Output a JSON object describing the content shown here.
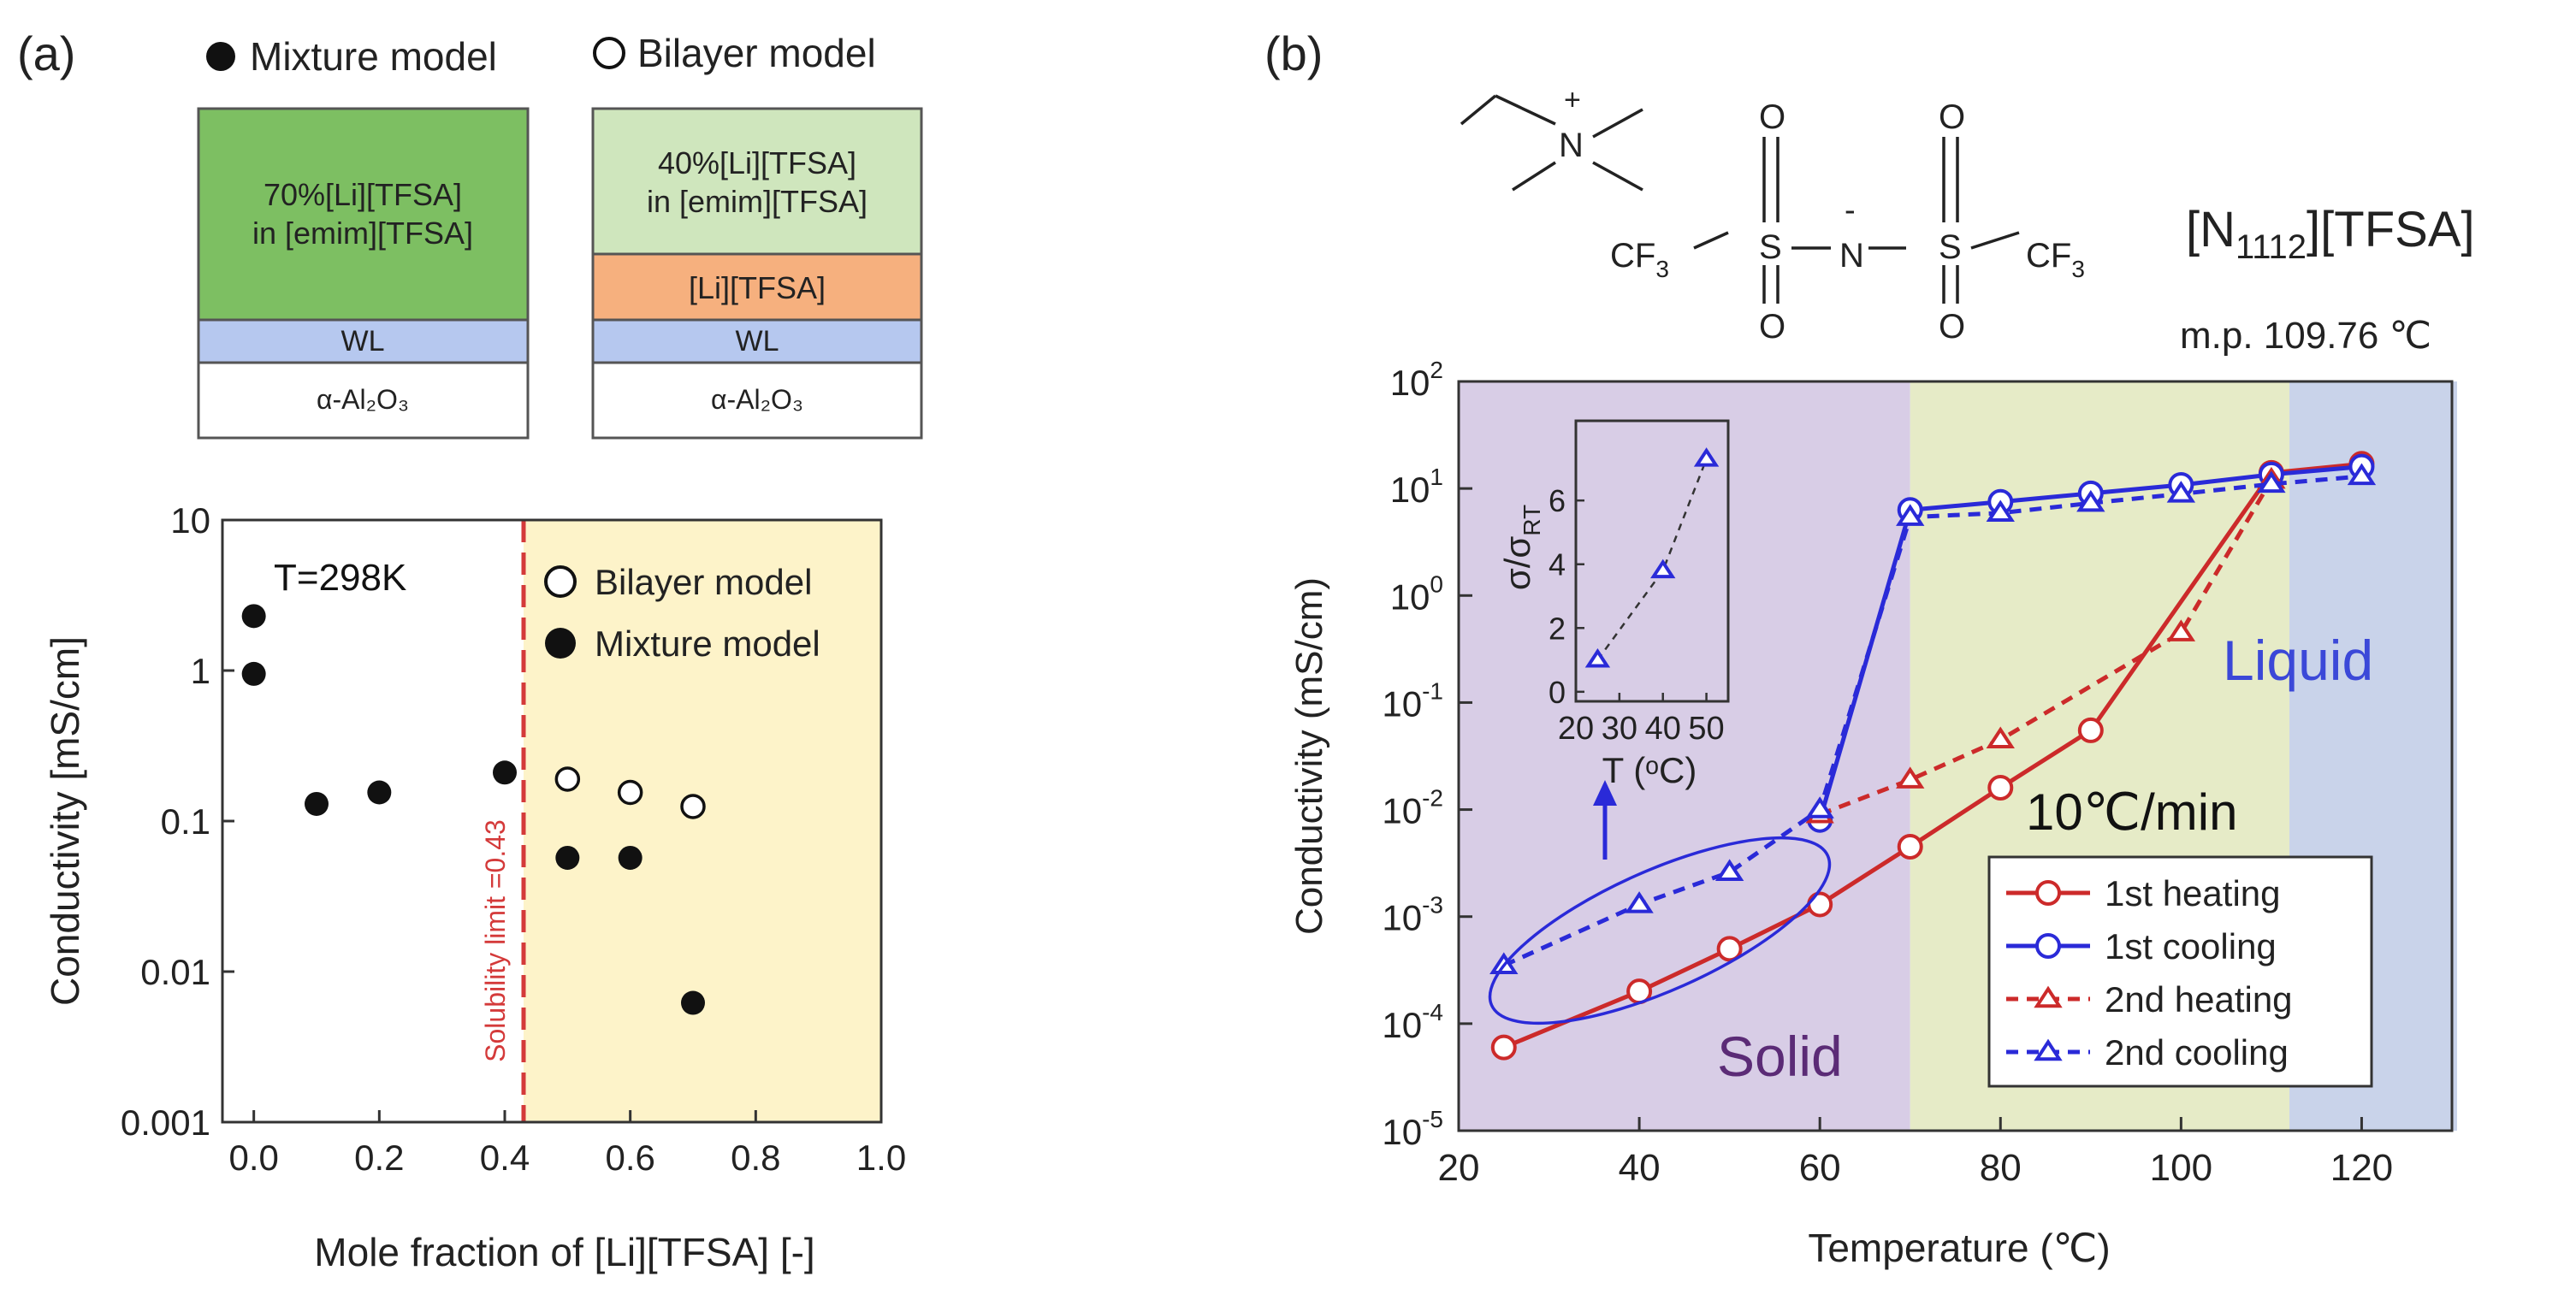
{
  "colors": {
    "layer_mix": "#7dbf62",
    "layer_bilayer": "#cfe6bd",
    "layer_li": "#f6b07e",
    "layer_wl": "#b6c8ef",
    "region_a": "#fdf3c9",
    "dash_a": "#d43a3a",
    "solid": "#d8cde6",
    "mid": "#e6ebc7",
    "liquid": "#c9d3ea",
    "red": "#cc2a2a",
    "blue": "#2a2ad8",
    "solid_text": "#5b2b76",
    "liquid_text": "#3b48d8"
  },
  "panel_a": {
    "label": "(a)",
    "legend_top": {
      "mixture": "Mixture model",
      "bilayer": "Bilayer model"
    },
    "mixture_box": {
      "top_line1": "70%[Li][TFSA]",
      "top_line2": "in [emim][TFSA]",
      "wl": "WL",
      "substrate": "α-Al₂O₃"
    },
    "bilayer_box": {
      "top_line1": "40%[Li][TFSA]",
      "top_line2": "in [emim][TFSA]",
      "middle": "[Li][TFSA]",
      "wl": "WL",
      "substrate": "α-Al₂O₃"
    }
  },
  "panel_b": {
    "label": "(b)",
    "compound": "[N1112][TFSA]",
    "compound_sub": "1112",
    "mp": "m.p. 109.76 ℃",
    "structure": {
      "o1": "O",
      "o2": "O",
      "o3": "O",
      "o4": "O",
      "s1": "S",
      "s2": "S",
      "n_anion": "N",
      "n_cation": "N",
      "plus": "+",
      "minus": "-",
      "cf3_left": "CF",
      "cf3_right": "CF",
      "three": "3"
    },
    "inset_arrow": "↑"
  },
  "chart_data": [
    {
      "type": "scatter",
      "title": "",
      "annotation": "T=298K",
      "xlabel": "Mole fraction of [Li][TFSA] [-]",
      "ylabel": "Conductivity [mS/cm]",
      "xlim": [
        -0.05,
        1.0
      ],
      "ylim": [
        0.001,
        10
      ],
      "yscale": "log",
      "x_ticks": [
        "0.0",
        "0.2",
        "0.4",
        "0.6",
        "0.8",
        "1.0"
      ],
      "x_tick_values": [
        0.0,
        0.2,
        0.4,
        0.6,
        0.8,
        1.0
      ],
      "y_ticks": [
        "0.001",
        "0.01",
        "0.1",
        "1",
        "10"
      ],
      "y_tick_values": [
        0.001,
        0.01,
        0.1,
        1,
        10
      ],
      "vline": {
        "x": 0.43,
        "label": "Solubility limit =0.43"
      },
      "shaded_region": {
        "x_from": 0.43,
        "x_to": 1.0
      },
      "legend": [
        "Bilayer model",
        "Mixture model"
      ],
      "series": [
        {
          "name": "Mixture model",
          "marker": "filled-circle",
          "x": [
            0.0,
            0.0,
            0.1,
            0.2,
            0.4,
            0.5,
            0.6,
            0.7
          ],
          "y": [
            2.3,
            0.95,
            0.13,
            0.155,
            0.21,
            0.057,
            0.057,
            0.0062
          ]
        },
        {
          "name": "Bilayer model",
          "marker": "open-circle",
          "x": [
            0.5,
            0.6,
            0.7
          ],
          "y": [
            0.19,
            0.155,
            0.125
          ]
        }
      ]
    },
    {
      "type": "line",
      "title": "",
      "xlabel": "Temperature (℃)",
      "ylabel": "Conductivity (mS/cm)",
      "xlim": [
        20,
        130
      ],
      "ylim": [
        1e-05,
        100
      ],
      "yscale": "log",
      "x_ticks": [
        "20",
        "40",
        "60",
        "80",
        "100",
        "120"
      ],
      "x_tick_values": [
        20,
        40,
        60,
        80,
        100,
        120
      ],
      "y_tick_exponents": [
        "-5",
        "-4",
        "-3",
        "-2",
        "-1",
        "0",
        "1",
        "2"
      ],
      "y_tick_base": "10",
      "regions": [
        {
          "label": "Solid",
          "x_from": 20,
          "x_to": 70
        },
        {
          "label": "",
          "x_from": 70,
          "x_to": 112
        },
        {
          "label": "Liquid",
          "x_from": 112,
          "x_to": 131
        }
      ],
      "annotation": "10℃/min",
      "series": [
        {
          "name": "1st heating",
          "marker": "open-circle",
          "line": "solid",
          "color": "red",
          "x": [
            25,
            40,
            50,
            60,
            70,
            80,
            90,
            110,
            120
          ],
          "y": [
            6e-05,
            0.0002,
            0.0005,
            0.0013,
            0.0045,
            0.016,
            0.055,
            14,
            17
          ]
        },
        {
          "name": "1st cooling",
          "marker": "open-circle",
          "line": "solid",
          "color": "blue",
          "x": [
            60,
            70,
            80,
            90,
            100,
            110,
            120
          ],
          "y": [
            0.008,
            6.3,
            7.5,
            9.0,
            10.8,
            13.5,
            16
          ]
        },
        {
          "name": "2nd heating",
          "marker": "open-triangle",
          "line": "dashed",
          "color": "red",
          "x": [
            60,
            70,
            80,
            100,
            110
          ],
          "y": [
            0.009,
            0.019,
            0.045,
            0.45,
            12
          ]
        },
        {
          "name": "2nd cooling",
          "marker": "open-triangle",
          "line": "dashed",
          "color": "blue",
          "x": [
            25,
            40,
            50,
            60,
            70,
            80,
            90,
            100,
            110,
            120
          ],
          "y": [
            0.00035,
            0.0013,
            0.0026,
            0.01,
            5.4,
            5.9,
            7.3,
            8.9,
            11,
            13
          ]
        }
      ],
      "inset": {
        "type": "scatter",
        "xlabel": "T (ᵒC)",
        "ylabel": "σ/σ",
        "ylabel_sub": "RT",
        "xlim": [
          20,
          55
        ],
        "ylim": [
          -0.3,
          8.5
        ],
        "x_ticks": [
          "20",
          "30",
          "40",
          "50"
        ],
        "x_tick_values": [
          20,
          30,
          40,
          50
        ],
        "y_ticks": [
          "0",
          "2",
          "4",
          "6"
        ],
        "y_tick_values": [
          0,
          2,
          4,
          6
        ],
        "x": [
          25,
          40,
          50
        ],
        "y": [
          1.0,
          3.8,
          7.3
        ]
      }
    }
  ]
}
